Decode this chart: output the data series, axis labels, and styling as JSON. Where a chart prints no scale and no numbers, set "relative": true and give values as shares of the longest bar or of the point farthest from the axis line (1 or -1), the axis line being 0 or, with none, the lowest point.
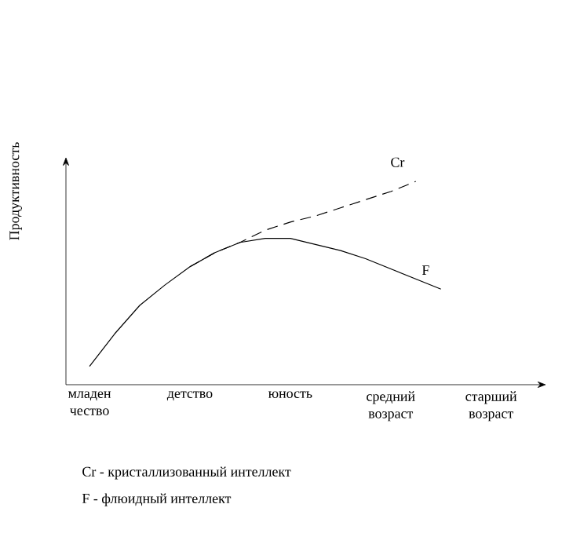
{
  "chart_data": {
    "type": "line",
    "relative": true,
    "ylabel": "Продуктивность",
    "categories": [
      "младен чество",
      null,
      null,
      null,
      "детство",
      null,
      null,
      null,
      "юность",
      null,
      null,
      null,
      "средний возраст",
      null,
      null,
      null,
      "старший возраст"
    ],
    "series": [
      {
        "name": "Cr",
        "color": "#000000",
        "line_style": "dashed",
        "values": [
          null,
          null,
          null,
          null,
          0.58,
          0.65,
          0.7,
          0.76,
          0.8,
          0.83,
          0.87,
          0.91,
          0.95,
          1.0,
          null,
          null,
          null
        ]
      },
      {
        "name": "F",
        "color": "#000000",
        "line_style": "solid",
        "values": [
          0.09,
          0.25,
          0.39,
          0.49,
          0.58,
          0.65,
          0.7,
          0.72,
          0.72,
          0.69,
          0.66,
          0.62,
          0.57,
          0.52,
          0.47,
          null,
          null
        ]
      }
    ],
    "annotations": [
      "Cr - кристаллизованный интеллект",
      "F - флюидный интеллект"
    ]
  }
}
